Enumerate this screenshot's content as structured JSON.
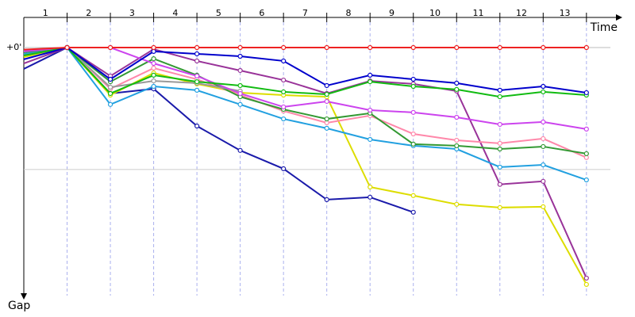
{
  "chart_data": {
    "type": "line",
    "x_title": "Time",
    "y_title": "Gap",
    "x": [
      0,
      1,
      2,
      3,
      4,
      5,
      6,
      7,
      8,
      9,
      10,
      11,
      12,
      13
    ],
    "xlim": [
      0,
      13.7
    ],
    "xticks": [
      {
        "value": 0.5,
        "label": "1"
      },
      {
        "value": 1.5,
        "label": "2"
      },
      {
        "value": 2.5,
        "label": "3"
      },
      {
        "value": 3.5,
        "label": "4"
      },
      {
        "value": 4.5,
        "label": "5"
      },
      {
        "value": 5.5,
        "label": "6"
      },
      {
        "value": 6.5,
        "label": "7"
      },
      {
        "value": 7.5,
        "label": "8"
      },
      {
        "value": 8.5,
        "label": "9"
      },
      {
        "value": 9.5,
        "label": "10"
      },
      {
        "value": 10.5,
        "label": "11"
      },
      {
        "value": 11.5,
        "label": "12"
      },
      {
        "value": 12.5,
        "label": "13"
      }
    ],
    "ylim": [
      0,
      122
    ],
    "yticks": [
      {
        "value": 0,
        "label": "+0'"
      }
    ],
    "grid_lines": [
      60
    ],
    "series": [
      {
        "color": "#1a1aaa",
        "values": [
          10.5,
          0,
          22.6,
          20.3,
          38.6,
          50.6,
          59.6,
          74.8,
          73.6,
          81,
          null,
          null,
          null,
          null
        ]
      },
      {
        "color": "#dddd00",
        "values": [
          4.7,
          0,
          23.4,
          12.5,
          17.9,
          22.2,
          23.4,
          24.2,
          68.6,
          72.8,
          77.1,
          78.7,
          78.3,
          116.5
        ]
      },
      {
        "color": "#993399",
        "values": [
          7.8,
          0,
          14,
          0.8,
          6.6,
          11.3,
          16,
          22.6,
          16.4,
          17.9,
          21.4,
          67.3,
          65.8,
          113.4
        ]
      },
      {
        "color": "#22a0e0",
        "values": [
          3.1,
          0,
          28,
          19.1,
          21,
          28,
          35.1,
          39.7,
          45.2,
          48.3,
          49.9,
          58.8,
          57.7,
          65.1
        ]
      },
      {
        "color": "#ff88aa",
        "values": [
          3.9,
          0,
          20.3,
          10.1,
          15.6,
          23.4,
          31.2,
          37,
          33.5,
          42.5,
          45.6,
          47.1,
          44.8,
          54.1
        ]
      },
      {
        "color": "#339933",
        "values": [
          2.3,
          0,
          16.8,
          5.5,
          13.6,
          24.2,
          30.4,
          35.1,
          32.3,
          47.5,
          48.3,
          49.9,
          48.7,
          52.2
        ]
      },
      {
        "color": "#999999",
        "values": [
          1.6,
          0,
          19.5,
          16.4,
          17.5,
          21.4,
          null,
          null,
          null,
          null,
          null,
          null,
          null,
          null
        ]
      },
      {
        "color": "#cc44ee",
        "values": [
          1.9,
          0,
          0,
          7.8,
          14,
          22.6,
          29.2,
          26.5,
          30.8,
          31.9,
          34.3,
          37.8,
          36.6,
          40.1
        ]
      },
      {
        "color": "#11bb11",
        "values": [
          3.9,
          0,
          22.6,
          13.6,
          16.8,
          18.7,
          21.8,
          23,
          16.8,
          19.1,
          20.6,
          24.2,
          21.8,
          23.4
        ]
      },
      {
        "color": "#0000cc",
        "values": [
          5.8,
          0,
          15.6,
          1.9,
          3.1,
          4.3,
          6.6,
          18.7,
          13.6,
          15.6,
          17.5,
          21,
          19.1,
          22.2
        ]
      },
      {
        "color": "#ee2222",
        "values": [
          1,
          0,
          0,
          0,
          0,
          0,
          0,
          0,
          0,
          0,
          0,
          0,
          0,
          0
        ]
      }
    ]
  }
}
